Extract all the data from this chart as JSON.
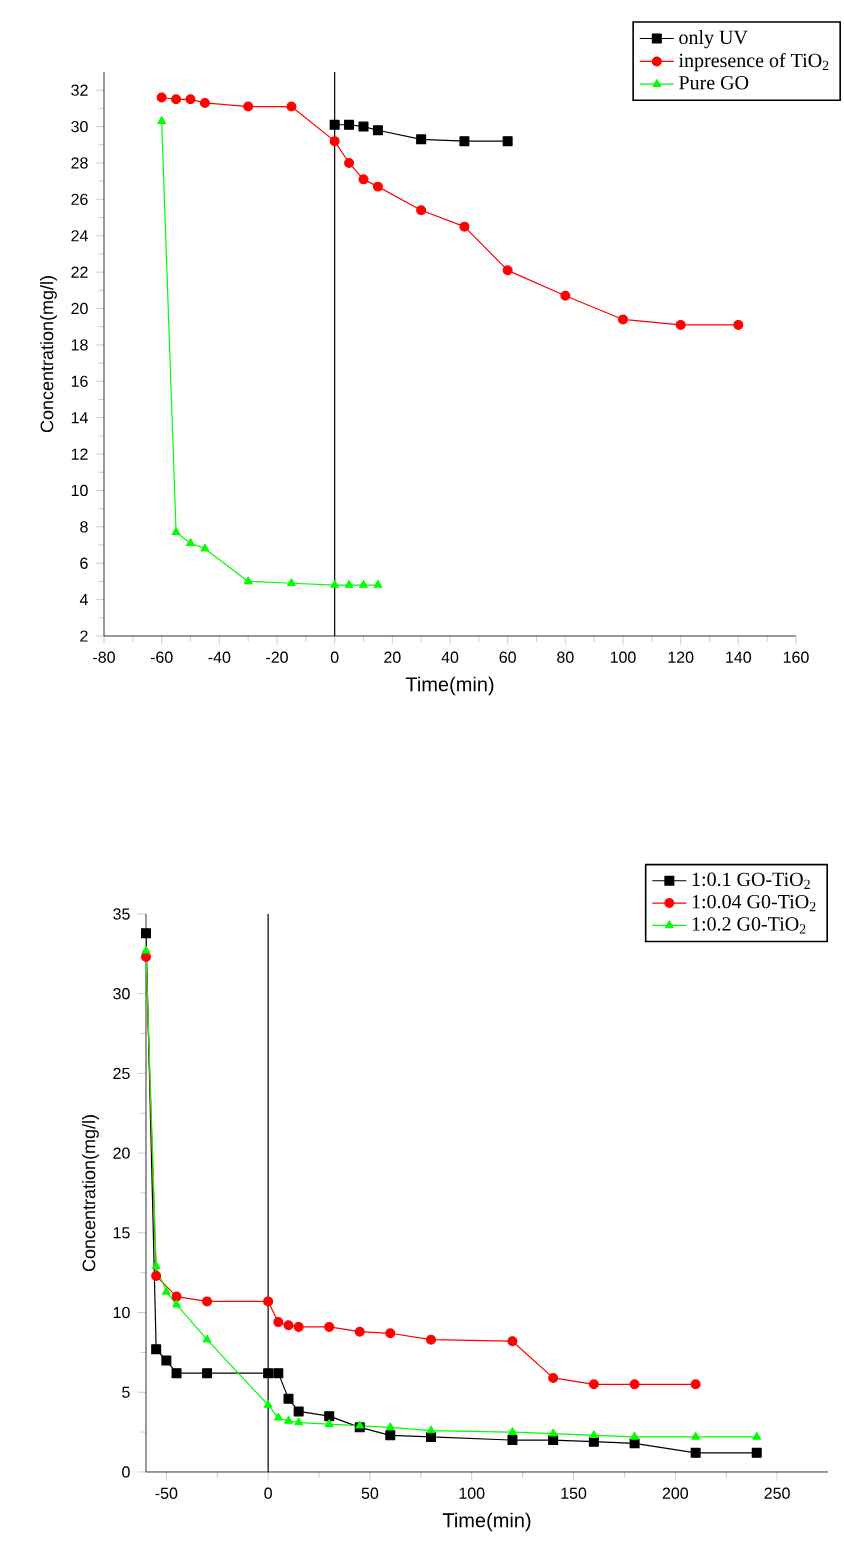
{
  "chart_data": [
    {
      "type": "line",
      "xlabel": "Time(min)",
      "ylabel": "Concentration(mg/l)",
      "xlim": [
        -80,
        160
      ],
      "xticks": [
        -80,
        -60,
        -40,
        -20,
        0,
        20,
        40,
        60,
        80,
        100,
        120,
        140,
        160
      ],
      "ylim": [
        2,
        33
      ],
      "yticks": [
        2,
        4,
        6,
        8,
        10,
        12,
        14,
        16,
        18,
        20,
        22,
        24,
        26,
        28,
        30,
        32
      ],
      "legend": "top right",
      "grid": false,
      "ref_lines": [
        {
          "axis": "x",
          "value": 0,
          "color": "#000000"
        }
      ],
      "series": [
        {
          "name": "only UV",
          "color": "#000000",
          "marker": "square",
          "x": [
            0,
            5,
            10,
            15,
            30,
            45,
            60
          ],
          "values": [
            30.1,
            30.1,
            30.0,
            29.8,
            29.3,
            29.2,
            29.2
          ]
        },
        {
          "name": "inpresence of TiO$_{2}$",
          "color": "#ff0000",
          "marker": "circle",
          "x": [
            -60,
            -55,
            -50,
            -45,
            -30,
            -15,
            0,
            5,
            10,
            15,
            30,
            45,
            60,
            80,
            100,
            120,
            140
          ],
          "values": [
            31.6,
            31.5,
            31.5,
            31.3,
            31.1,
            31.1,
            29.2,
            28.0,
            27.1,
            26.7,
            25.4,
            24.5,
            22.1,
            20.7,
            19.4,
            19.1,
            19.1
          ]
        },
        {
          "name": "Pure GO",
          "color": "#00ff00",
          "marker": "triangle",
          "x": [
            -60,
            -55,
            -50,
            -45,
            -30,
            -15,
            0,
            5,
            10,
            15
          ],
          "values": [
            30.3,
            7.7,
            7.1,
            6.8,
            5.0,
            4.9,
            4.8,
            4.8,
            4.8,
            4.8
          ]
        }
      ]
    },
    {
      "type": "line",
      "xlabel": "Time(min)",
      "ylabel": "Concentration(mg/l)",
      "xlim": [
        -60,
        275
      ],
      "xticks": [
        -50,
        0,
        50,
        100,
        150,
        200,
        250
      ],
      "ylim": [
        0,
        35
      ],
      "yticks": [
        0,
        5,
        10,
        15,
        20,
        25,
        30,
        35
      ],
      "legend": "top right",
      "grid": false,
      "ref_lines": [
        {
          "axis": "x",
          "value": 0,
          "color": "#000000"
        }
      ],
      "series": [
        {
          "name": "1:0.1 GO-TiO$_{2}$",
          "color": "#000000",
          "marker": "square",
          "x": [
            -60,
            -55,
            -50,
            -45,
            -30,
            0,
            5,
            10,
            15,
            30,
            45,
            60,
            80,
            120,
            140,
            160,
            180,
            210,
            240
          ],
          "values": [
            33.8,
            7.7,
            7.0,
            6.2,
            6.2,
            6.2,
            6.2,
            4.6,
            3.8,
            3.5,
            2.8,
            2.3,
            2.2,
            2.0,
            2.0,
            1.9,
            1.8,
            1.2,
            1.2
          ]
        },
        {
          "name": "1:0.04 G0-TiO$_{2}$",
          "color": "#ff0000",
          "marker": "circle",
          "x": [
            -60,
            -55,
            -45,
            -30,
            0,
            5,
            10,
            15,
            30,
            45,
            60,
            80,
            120,
            140,
            160,
            180,
            210
          ],
          "values": [
            32.3,
            12.3,
            11.0,
            10.7,
            10.7,
            9.4,
            9.2,
            9.1,
            9.1,
            8.8,
            8.7,
            8.3,
            8.2,
            5.9,
            5.5,
            5.5,
            5.5
          ]
        },
        {
          "name": "1:0.2 G0-TiO$_{2}$",
          "color": "#00ff00",
          "marker": "triangle",
          "x": [
            -60,
            -55,
            -50,
            -45,
            -30,
            0,
            5,
            10,
            15,
            30,
            45,
            60,
            80,
            120,
            140,
            160,
            180,
            210,
            240
          ],
          "values": [
            32.7,
            12.9,
            11.3,
            10.5,
            8.3,
            4.2,
            3.4,
            3.2,
            3.1,
            3.0,
            2.9,
            2.8,
            2.6,
            2.5,
            2.4,
            2.3,
            2.2,
            2.2,
            2.2
          ]
        }
      ]
    }
  ]
}
